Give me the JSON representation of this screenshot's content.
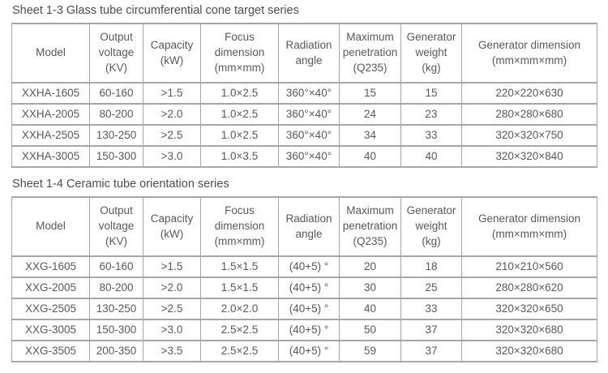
{
  "page": {
    "background": "#ffffff",
    "text_color": "#595959",
    "title_color": "#4d4d4d",
    "border_color": "#a6a6a6"
  },
  "tables": [
    {
      "title": "Sheet 1-3 Glass tube circumferential cone target series",
      "headers": [
        "Model",
        "Output\nvoltage\n(KV)",
        "Capacity\n(kW)",
        "Focus\ndimension\n(mm×mm)",
        "Radiation\nangle",
        "Maximum\npenetration\n(Q235)",
        "Generator\nweight\n(kg)",
        "Generator dimension\n(mm×mm×mm)"
      ],
      "rows": [
        [
          "XXHA-1605",
          "60-160",
          ">1.5",
          "1.0×2.5",
          "360°×40°",
          "15",
          "15",
          "220×220×630"
        ],
        [
          "XXHA-2005",
          "80-200",
          ">2.0",
          "1.0×2.5",
          "360°×40°",
          "24",
          "23",
          "280×280×680"
        ],
        [
          "XXHA-2505",
          "130-250",
          ">2.5",
          "1.0×2.5",
          "360°×40°",
          "34",
          "33",
          "320×320×750"
        ],
        [
          "XXHA-3005",
          "150-300",
          ">3.0",
          "1.0×3.5",
          "360°×40°",
          "40",
          "40",
          "320×320×840"
        ]
      ]
    },
    {
      "title": "Sheet 1-4 Ceramic tube orientation series",
      "headers": [
        "Model",
        "Output\nvoltage\n(KV)",
        "Capacity\n(kW)",
        "Focus\ndimension\n(mm×mm)",
        "Radiation\nangle",
        "Maximum\npenetration\n(Q235)",
        "Generator\nweight\n(kg)",
        "Generator dimension\n(mm×mm×mm)"
      ],
      "rows": [
        [
          "XXG-1605",
          "60-160",
          ">1.5",
          "1.5×1.5",
          "(40+5) °",
          "20",
          "18",
          "210×210×560"
        ],
        [
          "XXG-2005",
          "80-200",
          ">2.0",
          "1.5×1.5",
          "(40+5) °",
          "30",
          "25",
          "280×280×620"
        ],
        [
          "XXG-2505",
          "130-250",
          ">2.5",
          "2.0×2.0",
          "(40+5) °",
          "40",
          "33",
          "320×320×650"
        ],
        [
          "XXG-3005",
          "150-300",
          ">3.0",
          "2.5×2.5",
          "(40+5) °",
          "50",
          "37",
          "320×320×680"
        ],
        [
          "XXG-3505",
          "200-350",
          ">3.5",
          "2.5×2.5",
          "(40+5) °",
          "59",
          "37",
          "320×320×680"
        ]
      ]
    }
  ]
}
